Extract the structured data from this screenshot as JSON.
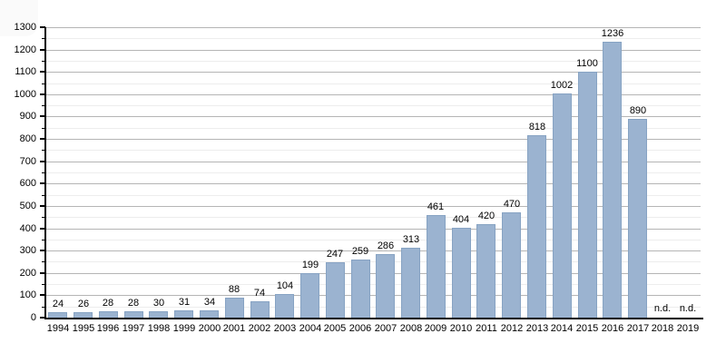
{
  "chart_data": {
    "type": "bar",
    "title": "",
    "xlabel": "",
    "ylabel": "",
    "categories": [
      "1994",
      "1995",
      "1996",
      "1997",
      "1998",
      "1999",
      "2000",
      "2001",
      "2002",
      "2003",
      "2004",
      "2005",
      "2006",
      "2007",
      "2008",
      "2009",
      "2010",
      "2011",
      "2012",
      "2013",
      "2014",
      "2015",
      "2016",
      "2017",
      "2018",
      "2019"
    ],
    "values": [
      24,
      26,
      28,
      28,
      30,
      31,
      34,
      88,
      74,
      104,
      199,
      247,
      259,
      286,
      313,
      461,
      404,
      420,
      470,
      818,
      1002,
      1100,
      1236,
      890,
      null,
      null
    ],
    "no_data_label": "n.d.",
    "ylim": [
      0,
      1300
    ],
    "ytick_step": 100,
    "yminor_step": 50,
    "grid": true,
    "legend": false,
    "colors": {
      "bar_fill": "#9bb3d0",
      "bar_border": "#87a3c3",
      "grid_major": "#b5b5b5",
      "grid_minor": "#ededed",
      "axis": "#000000",
      "text": "#000000",
      "background": "#ffffff"
    }
  }
}
